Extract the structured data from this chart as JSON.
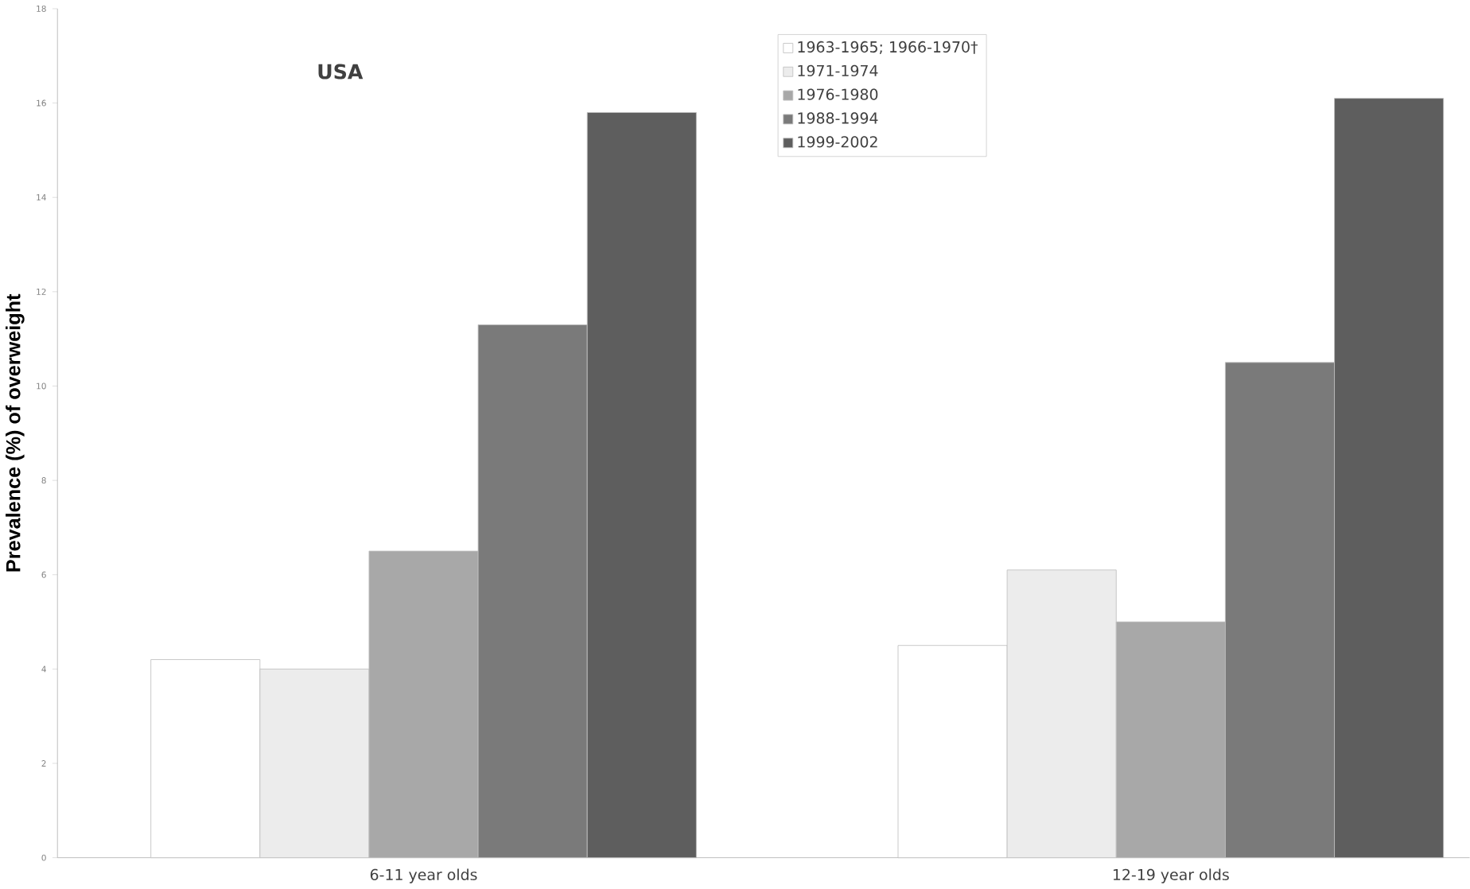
{
  "chart_data": {
    "type": "bar",
    "title": "USA",
    "ylabel": "Prevalence (%) of overweight",
    "categories": [
      "6-11 year olds",
      "12-19 year olds"
    ],
    "series": [
      {
        "name": "1963-1965; 1966-1970†",
        "color": "#ffffff",
        "values": [
          4.2,
          4.5
        ]
      },
      {
        "name": "1971-1974",
        "color": "#ececec",
        "values": [
          4.0,
          6.1
        ]
      },
      {
        "name": "1976-1980",
        "color": "#a8a8a8",
        "values": [
          6.5,
          5.0
        ]
      },
      {
        "name": "1988-1994",
        "color": "#7a7a7a",
        "values": [
          11.3,
          10.5
        ]
      },
      {
        "name": "1999-2002",
        "color": "#5e5e5e",
        "values": [
          15.8,
          16.1
        ]
      }
    ],
    "ylim": [
      0,
      18
    ],
    "yticks": [
      0,
      2,
      4,
      6,
      8,
      10,
      12,
      14,
      16,
      18
    ],
    "grid": false,
    "legend": "top right"
  }
}
